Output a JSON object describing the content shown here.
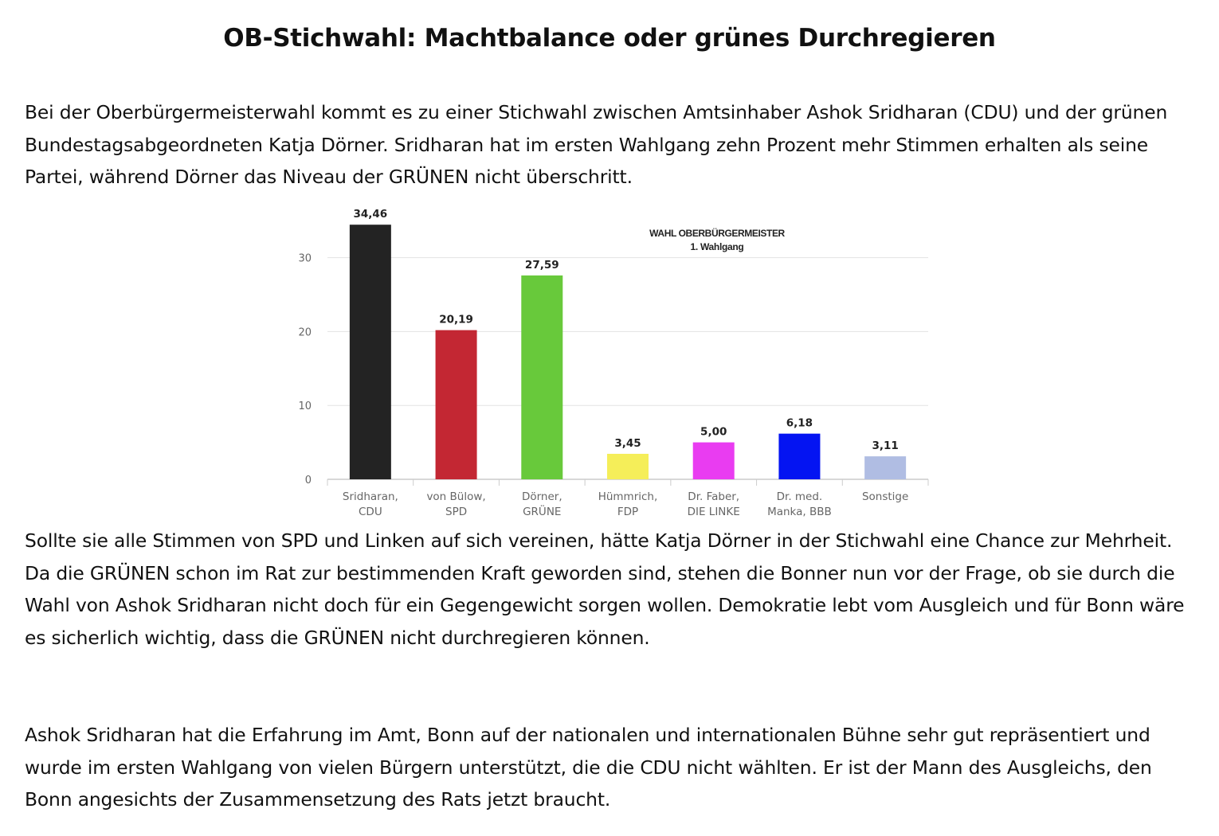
{
  "article": {
    "title": "OB-Stichwahl: Machtbalance oder grünes Durchregieren",
    "paragraphs": [
      "Bei der Oberbürgermeisterwahl kommt es zu einer Stichwahl zwischen Amtsinhaber Ashok Sridharan (CDU) und der grünen Bundestagsabgeordneten Katja Dörner. Sridharan hat im ersten Wahlgang zehn Prozent mehr Stimmen erhalten als seine Partei, während Dörner das Niveau der GRÜNEN nicht überschritt.",
      "Sollte sie alle Stimmen von SPD und Linken auf sich vereinen, hätte Katja Dörner in der Stichwahl eine Chance zur Mehrheit. Da die GRÜNEN schon im Rat zur bestimmenden Kraft geworden sind, stehen die Bonner nun vor der Frage, ob sie durch die Wahl von Ashok Sridharan nicht doch für ein Gegengewicht sorgen wollen. Demokratie lebt vom Ausgleich und für Bonn wäre es sicherlich wichtig, dass die GRÜNEN nicht durchregieren können.",
      "Ashok Sridharan hat die Erfahrung im Amt, Bonn auf der nationalen und internationalen Bühne sehr gut repräsentiert und wurde im ersten Wahlgang von vielen Bürgern unterstützt, die die CDU nicht wählten. Er ist der Mann des Ausgleichs, den Bonn angesichts der Zusammensetzung des Rats jetzt braucht."
    ]
  },
  "chart_data": {
    "type": "bar",
    "title": "WAHL OBERBÜRGERMEISTER",
    "subtitle": "1. Wahlgang",
    "categories": [
      [
        "Sridharan,",
        "CDU"
      ],
      [
        "von Bülow,",
        "SPD"
      ],
      [
        "Dörner,",
        "GRÜNE"
      ],
      [
        "Hümmrich,",
        "FDP"
      ],
      [
        "Dr. Faber,",
        "DIE LINKE"
      ],
      [
        "Dr. med.",
        "Manka, BBB"
      ],
      [
        "Sonstige"
      ]
    ],
    "values": [
      34.46,
      20.19,
      27.59,
      3.45,
      5.0,
      6.18,
      3.11
    ],
    "value_labels": [
      "34,46",
      "20,19",
      "27,59",
      "3,45",
      "5,00",
      "6,18",
      "3,11"
    ],
    "colors": [
      "#232323",
      "#c32733",
      "#68c93b",
      "#f5ee59",
      "#e93cf1",
      "#0414f2",
      "#b0bde3"
    ],
    "yticks": [
      0,
      10,
      20,
      30
    ],
    "ylim": [
      0,
      37.5
    ],
    "grid": true,
    "legend": "none"
  }
}
